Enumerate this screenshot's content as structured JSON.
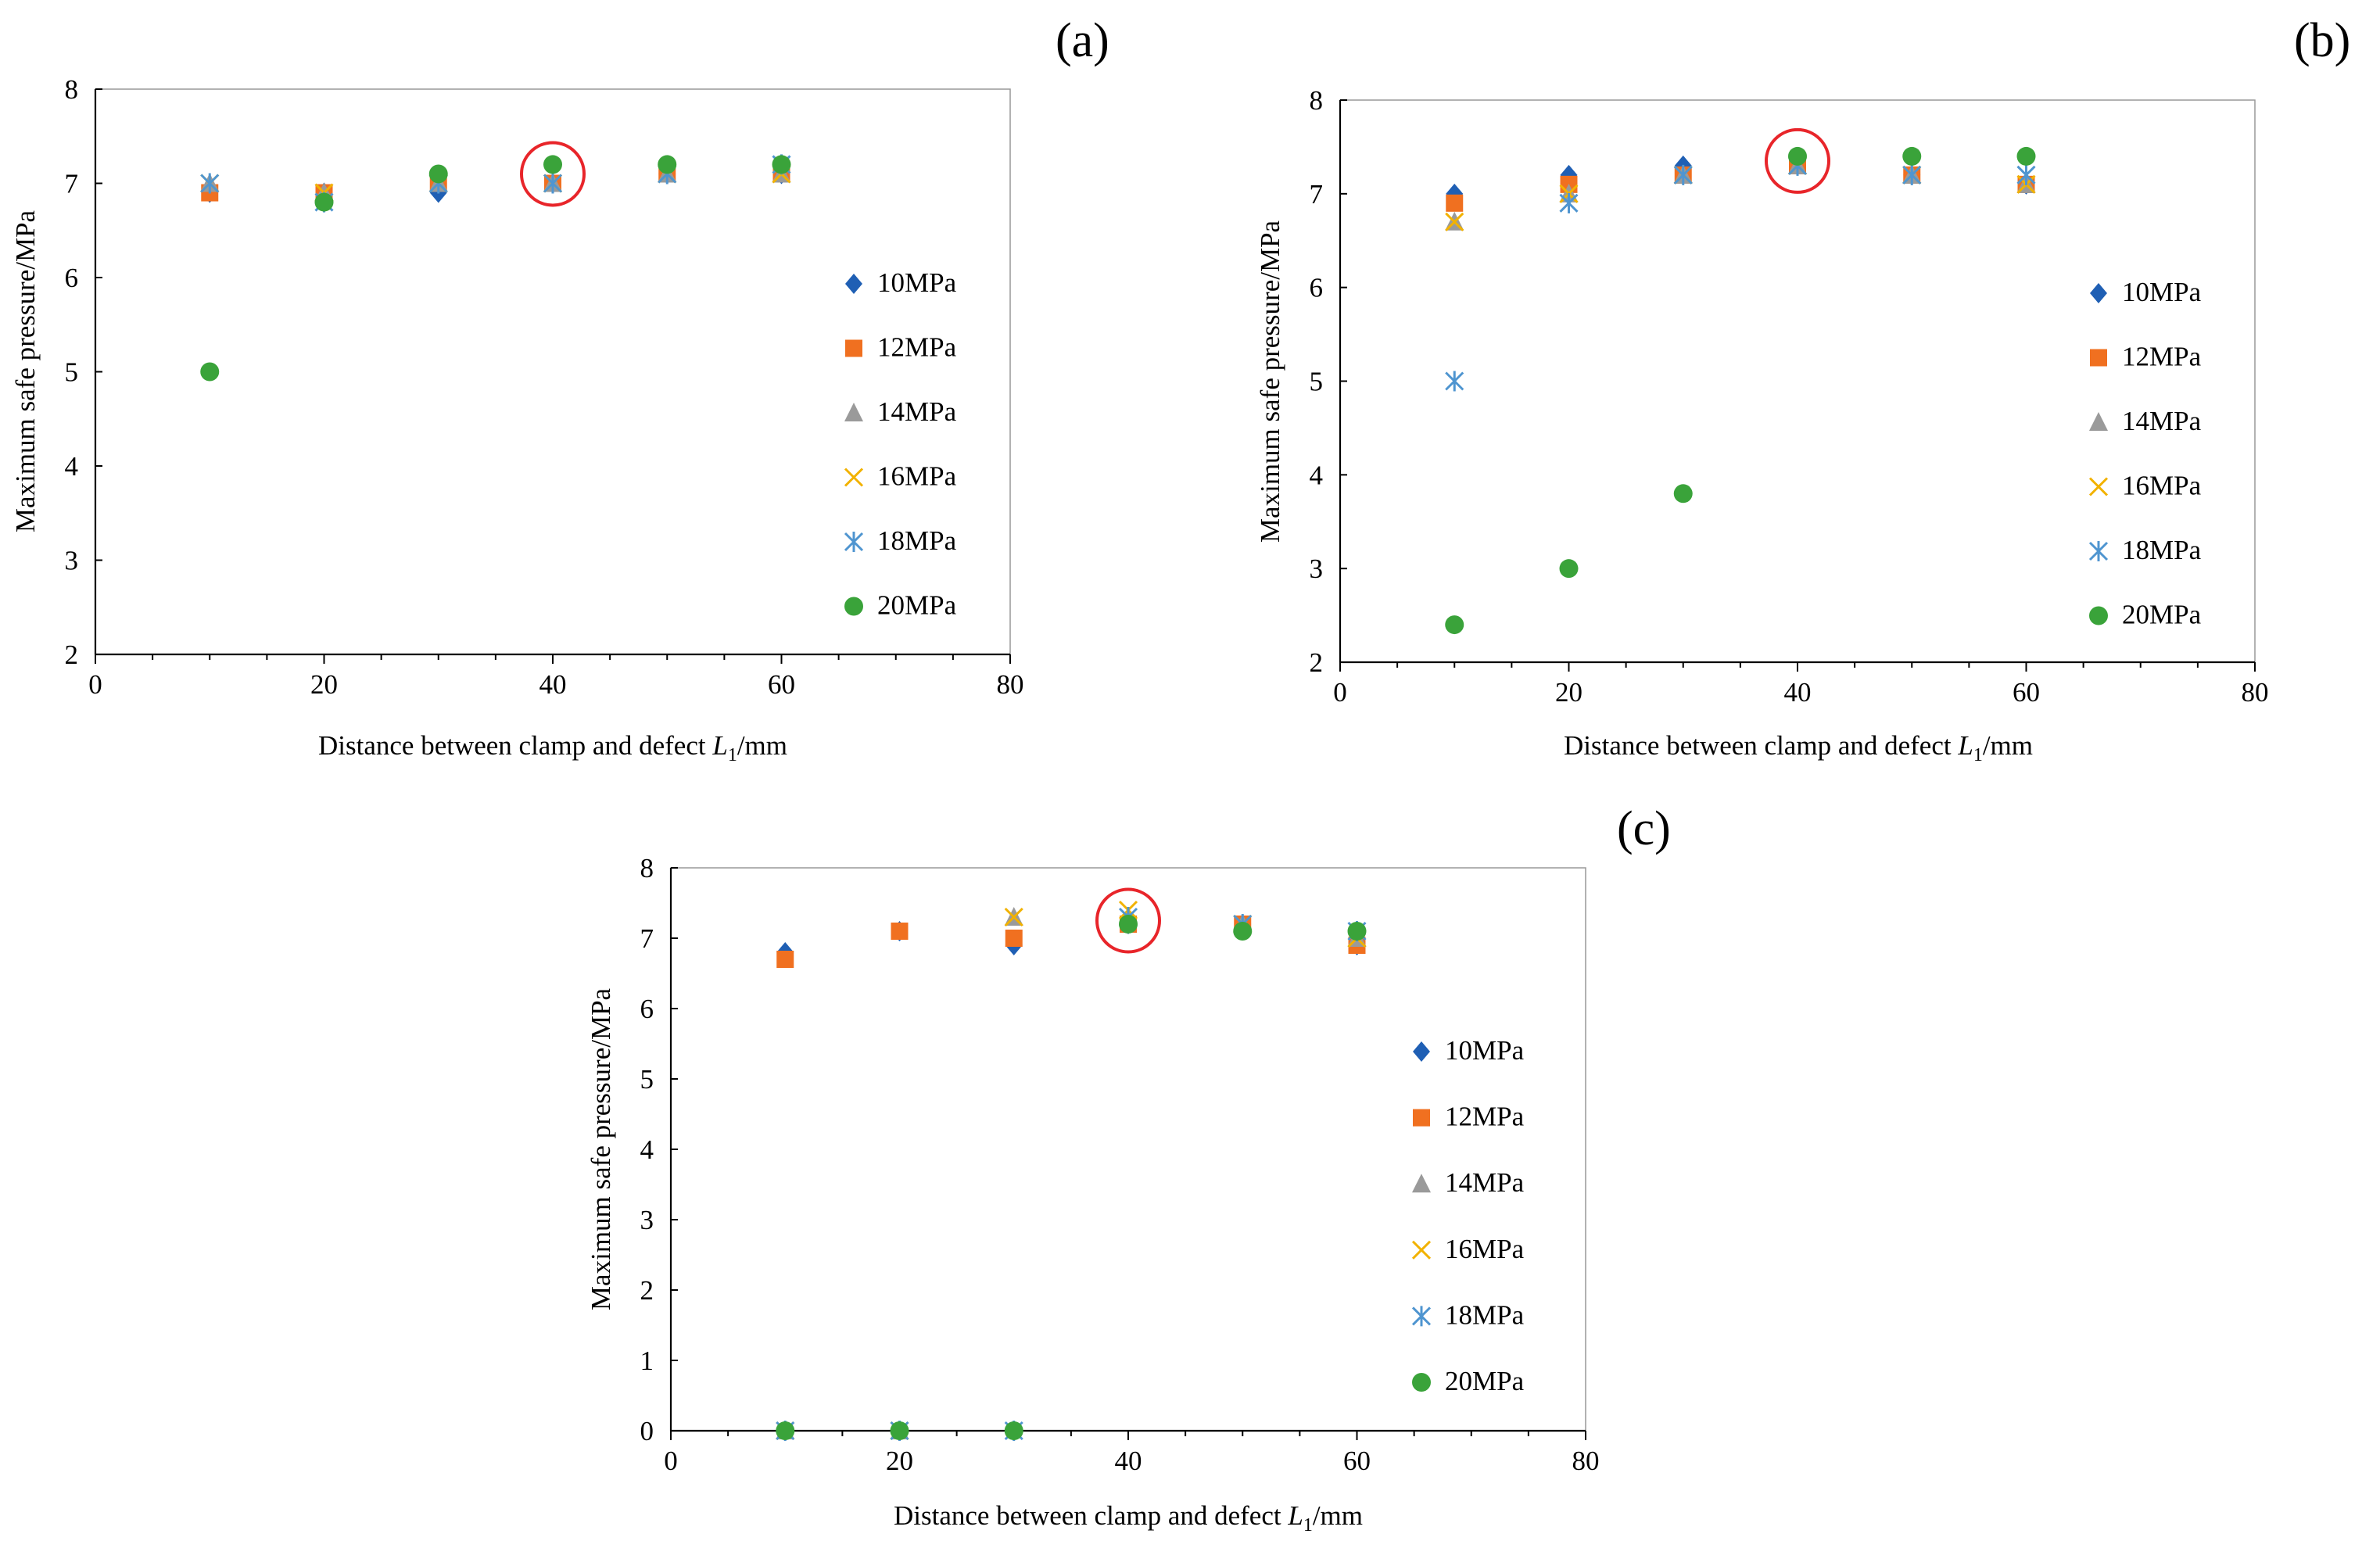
{
  "colors": {
    "10MPa": "#1f5fb4",
    "12MPa": "#f07020",
    "14MPa": "#9a9a9a",
    "16MPa": "#f2b200",
    "18MPa": "#4f95d0",
    "20MPa": "#3aa33a",
    "highlight": "#e8252a"
  },
  "chart_data": [
    {
      "type": "scatter",
      "panel_label": "(a)",
      "title": "",
      "xlabel_main": "Distance between clamp and defect ",
      "xlabel_var": "L",
      "xlabel_sub": "1",
      "xlabel_unit": "/mm",
      "ylabel": "Maximum safe pressure/MPa",
      "xlim": [
        0,
        80
      ],
      "ylim": [
        2,
        8
      ],
      "xticks": [
        0,
        20,
        40,
        60,
        80
      ],
      "yticks": [
        2,
        3,
        4,
        5,
        6,
        7,
        8
      ],
      "grid": false,
      "legend_position": "right-middle",
      "highlight": {
        "x": 40,
        "y": 7.1
      },
      "series": [
        {
          "name": "10MPa",
          "marker": "diamond",
          "x": [
            10,
            20,
            30,
            40,
            50,
            60
          ],
          "y": [
            6.9,
            6.9,
            6.9,
            7.0,
            7.1,
            7.1
          ]
        },
        {
          "name": "12MPa",
          "marker": "square",
          "x": [
            10,
            20,
            30,
            40,
            50,
            60
          ],
          "y": [
            6.9,
            6.9,
            7.0,
            7.0,
            7.1,
            7.1
          ]
        },
        {
          "name": "14MPa",
          "marker": "triangle",
          "x": [
            10,
            20,
            30,
            40,
            50,
            60
          ],
          "y": [
            7.0,
            6.9,
            7.0,
            7.0,
            7.1,
            7.1
          ]
        },
        {
          "name": "16MPa",
          "marker": "x",
          "x": [
            10,
            20,
            30,
            40,
            50,
            60
          ],
          "y": [
            7.0,
            6.9,
            7.0,
            7.0,
            7.1,
            7.1
          ]
        },
        {
          "name": "18MPa",
          "marker": "star",
          "x": [
            10,
            20,
            30,
            40,
            50,
            60
          ],
          "y": [
            7.0,
            6.8,
            7.0,
            7.0,
            7.1,
            7.2
          ]
        },
        {
          "name": "20MPa",
          "marker": "circle",
          "x": [
            10,
            20,
            30,
            40,
            50,
            60
          ],
          "y": [
            5.0,
            6.8,
            7.1,
            7.2,
            7.2,
            7.2
          ]
        }
      ]
    },
    {
      "type": "scatter",
      "panel_label": "(b)",
      "title": "",
      "xlabel_main": "Distance between clamp and defect ",
      "xlabel_var": "L",
      "xlabel_sub": "1",
      "xlabel_unit": "/mm",
      "ylabel": "Maximum safe pressure/MPa",
      "xlim": [
        0,
        80
      ],
      "ylim": [
        2,
        8
      ],
      "xticks": [
        0,
        20,
        40,
        60,
        80
      ],
      "yticks": [
        2,
        3,
        4,
        5,
        6,
        7,
        8
      ],
      "grid": false,
      "legend_position": "right-middle",
      "highlight": {
        "x": 40,
        "y": 7.35
      },
      "series": [
        {
          "name": "10MPa",
          "marker": "diamond",
          "x": [
            10,
            20,
            30,
            40,
            50,
            60
          ],
          "y": [
            7.0,
            7.2,
            7.3,
            7.3,
            7.2,
            7.1
          ]
        },
        {
          "name": "12MPa",
          "marker": "square",
          "x": [
            10,
            20,
            30,
            40,
            50,
            60
          ],
          "y": [
            6.9,
            7.1,
            7.2,
            7.3,
            7.2,
            7.1
          ]
        },
        {
          "name": "14MPa",
          "marker": "triangle",
          "x": [
            10,
            20,
            30,
            40,
            50,
            60
          ],
          "y": [
            6.7,
            7.0,
            7.2,
            7.3,
            7.2,
            7.1
          ]
        },
        {
          "name": "16MPa",
          "marker": "x",
          "x": [
            10,
            20,
            30,
            40,
            50,
            60
          ],
          "y": [
            6.7,
            7.0,
            7.2,
            7.3,
            7.2,
            7.1
          ]
        },
        {
          "name": "18MPa",
          "marker": "star",
          "x": [
            10,
            20,
            30,
            40,
            50,
            60
          ],
          "y": [
            5.0,
            6.9,
            7.2,
            7.3,
            7.2,
            7.2
          ]
        },
        {
          "name": "20MPa",
          "marker": "circle",
          "x": [
            10,
            20,
            30,
            40,
            50,
            60
          ],
          "y": [
            2.4,
            3.0,
            3.8,
            7.4,
            7.4,
            7.4
          ]
        }
      ]
    },
    {
      "type": "scatter",
      "panel_label": "(c)",
      "title": "",
      "xlabel_main": "Distance between clamp and defect ",
      "xlabel_var": "L",
      "xlabel_sub": "1",
      "xlabel_unit": "/mm",
      "ylabel": "Maximum safe pressure/MPa",
      "xlim": [
        0,
        80
      ],
      "ylim": [
        0,
        8
      ],
      "xticks": [
        0,
        20,
        40,
        60,
        80
      ],
      "yticks": [
        0,
        1,
        2,
        3,
        4,
        5,
        6,
        7,
        8
      ],
      "grid": false,
      "legend_position": "right-middle",
      "highlight": {
        "x": 40,
        "y": 7.25
      },
      "series": [
        {
          "name": "10MPa",
          "marker": "diamond",
          "x": [
            10,
            20,
            30,
            40,
            50,
            60
          ],
          "y": [
            6.8,
            7.1,
            6.9,
            7.2,
            7.2,
            6.9
          ]
        },
        {
          "name": "12MPa",
          "marker": "square",
          "x": [
            10,
            20,
            30,
            40,
            50,
            60
          ],
          "y": [
            6.7,
            7.1,
            7.0,
            7.2,
            7.2,
            6.9
          ]
        },
        {
          "name": "14MPa",
          "marker": "triangle",
          "x": [
            10,
            20,
            30,
            40,
            50,
            60
          ],
          "y": [
            0,
            0,
            7.3,
            7.3,
            7.2,
            7.0
          ]
        },
        {
          "name": "16MPa",
          "marker": "x",
          "x": [
            10,
            20,
            30,
            40,
            50,
            60
          ],
          "y": [
            0,
            0,
            7.3,
            7.4,
            7.2,
            7.0
          ]
        },
        {
          "name": "18MPa",
          "marker": "star",
          "x": [
            10,
            20,
            30,
            40,
            50,
            60
          ],
          "y": [
            0,
            0,
            0,
            7.3,
            7.2,
            7.1
          ]
        },
        {
          "name": "20MPa",
          "marker": "circle",
          "x": [
            10,
            20,
            30,
            40,
            50,
            60
          ],
          "y": [
            0,
            0,
            0,
            7.2,
            7.1,
            7.1
          ]
        }
      ]
    }
  ]
}
